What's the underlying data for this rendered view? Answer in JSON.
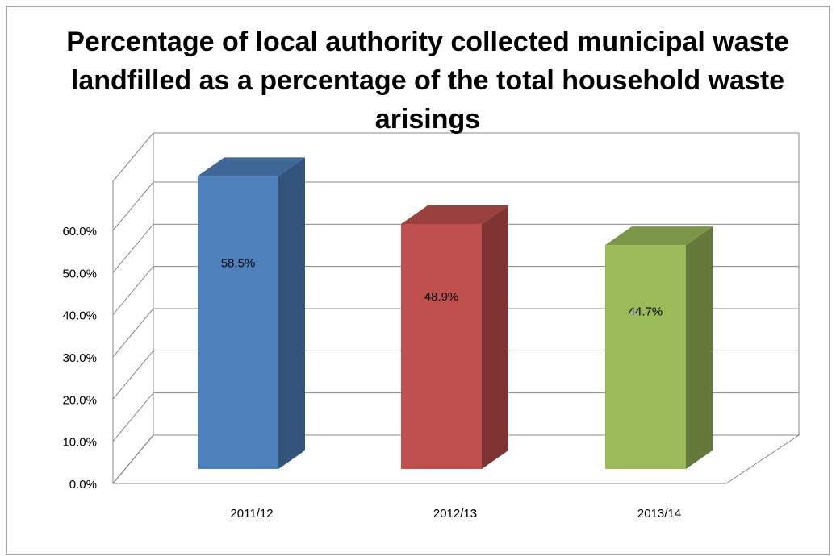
{
  "chart_data": {
    "type": "bar3d",
    "title": "Percentage of local authority collected municipal waste landfilled as a percentage of the total household waste arisings",
    "categories": [
      "2011/12",
      "2012/13",
      "2013/14"
    ],
    "values": [
      58.5,
      48.9,
      44.7
    ],
    "value_labels": [
      "58.5%",
      "48.9%",
      "44.7%"
    ],
    "colors": [
      "#4f81bd",
      "#c0504d",
      "#9bbb59"
    ],
    "ylim": [
      0,
      60
    ],
    "yticks": [
      {
        "value": 0,
        "label": "0.0%"
      },
      {
        "value": 10,
        "label": "10.0%"
      },
      {
        "value": 20,
        "label": "20.0%"
      },
      {
        "value": 30,
        "label": "30.0%"
      },
      {
        "value": 40,
        "label": "40.0%"
      },
      {
        "value": 50,
        "label": "50.0%"
      },
      {
        "value": 60,
        "label": "60.0%"
      }
    ],
    "grid": true
  }
}
